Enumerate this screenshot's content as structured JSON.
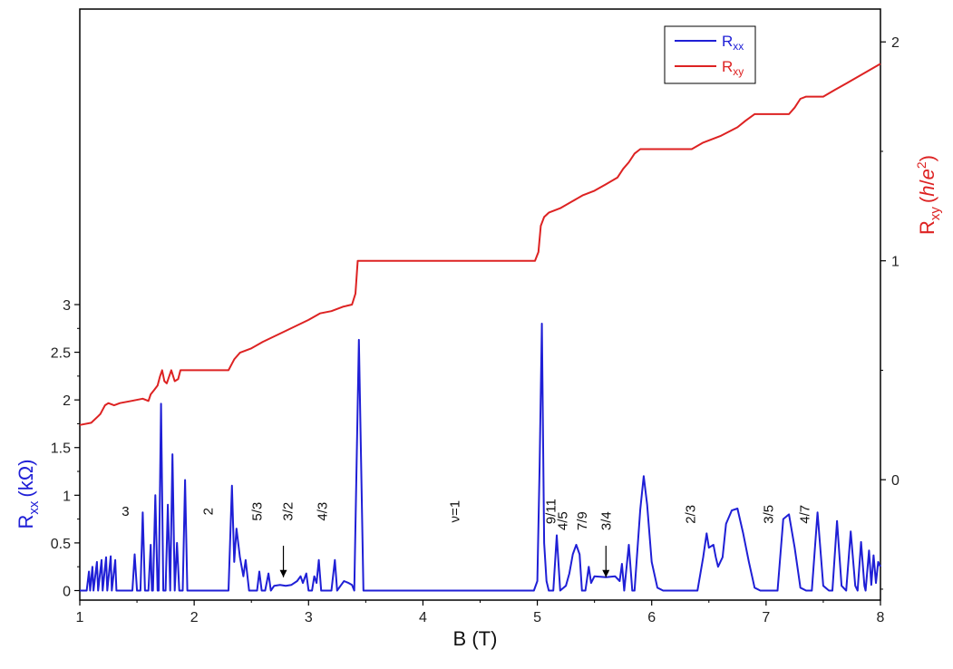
{
  "chart_data": {
    "type": "line",
    "xlabel": "B (T)",
    "ylabel_left": {
      "main": "R",
      "sub": "xx",
      "unit": "(kΩ)"
    },
    "ylabel_right": {
      "main": "R",
      "sub": "xy",
      "unit_open": "(",
      "unit_h": "h",
      "unit_slash": "/",
      "unit_e": "e",
      "unit_sup": "2",
      "unit_close": ")"
    },
    "xlim": [
      1,
      8
    ],
    "ylim_left": [
      -0.1,
      6.1
    ],
    "ylim_right": [
      -0.55,
      2.15
    ],
    "x_ticks": [
      "1",
      "2",
      "3",
      "4",
      "5",
      "6",
      "7",
      "8"
    ],
    "y_ticks_left": [
      "0",
      "0.5",
      "1",
      "1.5",
      "2",
      "2.5",
      "3"
    ],
    "y_ticks_right": [
      "0",
      "1",
      "2"
    ],
    "legend": {
      "position": "top-right",
      "entries": [
        {
          "main": "R",
          "sub": "xx",
          "color": "#1f1fd6"
        },
        {
          "main": "R",
          "sub": "xy",
          "color": "#dd2222"
        }
      ]
    },
    "colors": {
      "rxx": "#1f1fd6",
      "rxy": "#dd2222",
      "left_axis_label": "#1f1fd6",
      "right_axis_label": "#dd2222"
    },
    "annotations": [
      {
        "text": "3",
        "x": 1.4,
        "y": 0.83,
        "rotate": false
      },
      {
        "text": "2",
        "x": 2.12,
        "y": 0.83,
        "rotate": true
      },
      {
        "text": "5/3",
        "x": 2.55,
        "y": 0.83,
        "rotate": true
      },
      {
        "text": "3/2",
        "x": 2.82,
        "y": 0.83,
        "rotate": true
      },
      {
        "text": "4/3",
        "x": 3.12,
        "y": 0.83,
        "rotate": true
      },
      {
        "text": "ν=1",
        "x": 4.28,
        "y": 0.83,
        "rotate": true
      },
      {
        "text": "9/11",
        "x": 5.12,
        "y": 0.83,
        "rotate": true
      },
      {
        "text": "4/5",
        "x": 5.22,
        "y": 0.73,
        "rotate": true
      },
      {
        "text": "7/9",
        "x": 5.39,
        "y": 0.73,
        "rotate": true
      },
      {
        "text": "3/4",
        "x": 5.6,
        "y": 0.73,
        "rotate": true
      },
      {
        "text": "2/3",
        "x": 6.34,
        "y": 0.8,
        "rotate": true
      },
      {
        "text": "3/5",
        "x": 7.02,
        "y": 0.8,
        "rotate": true
      },
      {
        "text": "4/7",
        "x": 7.34,
        "y": 0.8,
        "rotate": true
      }
    ],
    "arrows": [
      {
        "x": 2.78,
        "y_from": 0.47,
        "y_to": 0.14
      },
      {
        "x": 5.6,
        "y_from": 0.47,
        "y_to": 0.14
      }
    ],
    "series": [
      {
        "name": "Rxx",
        "axis": "left",
        "points": [
          [
            1.0,
            0.0
          ],
          [
            1.06,
            0.0
          ],
          [
            1.08,
            0.2
          ],
          [
            1.09,
            0.0
          ],
          [
            1.11,
            0.25
          ],
          [
            1.12,
            0.0
          ],
          [
            1.15,
            0.3
          ],
          [
            1.16,
            0.0
          ],
          [
            1.19,
            0.32
          ],
          [
            1.2,
            0.0
          ],
          [
            1.23,
            0.35
          ],
          [
            1.24,
            0.0
          ],
          [
            1.27,
            0.36
          ],
          [
            1.28,
            0.0
          ],
          [
            1.31,
            0.32
          ],
          [
            1.32,
            0.0
          ],
          [
            1.46,
            0.0
          ],
          [
            1.48,
            0.38
          ],
          [
            1.5,
            0.0
          ],
          [
            1.53,
            0.0
          ],
          [
            1.55,
            0.82
          ],
          [
            1.57,
            0.0
          ],
          [
            1.6,
            0.0
          ],
          [
            1.62,
            0.48
          ],
          [
            1.63,
            0.0
          ],
          [
            1.64,
            0.0
          ],
          [
            1.66,
            1.0
          ],
          [
            1.68,
            0.0
          ],
          [
            1.69,
            0.0
          ],
          [
            1.71,
            1.96
          ],
          [
            1.73,
            0.0
          ],
          [
            1.75,
            0.0
          ],
          [
            1.77,
            0.9
          ],
          [
            1.79,
            0.0
          ],
          [
            1.79,
            0.0
          ],
          [
            1.81,
            1.43
          ],
          [
            1.83,
            0.0
          ],
          [
            1.83,
            0.0
          ],
          [
            1.85,
            0.5
          ],
          [
            1.87,
            0.0
          ],
          [
            1.9,
            0.0
          ],
          [
            1.92,
            1.16
          ],
          [
            1.94,
            0.0
          ],
          [
            2.3,
            0.0
          ],
          [
            2.33,
            1.1
          ],
          [
            2.35,
            0.3
          ],
          [
            2.37,
            0.65
          ],
          [
            2.4,
            0.35
          ],
          [
            2.43,
            0.15
          ],
          [
            2.45,
            0.32
          ],
          [
            2.48,
            0.0
          ],
          [
            2.55,
            0.0
          ],
          [
            2.57,
            0.2
          ],
          [
            2.59,
            0.0
          ],
          [
            2.62,
            0.0
          ],
          [
            2.65,
            0.18
          ],
          [
            2.67,
            0.0
          ],
          [
            2.7,
            0.05
          ],
          [
            2.75,
            0.06
          ],
          [
            2.8,
            0.05
          ],
          [
            2.85,
            0.06
          ],
          [
            2.9,
            0.1
          ],
          [
            2.93,
            0.15
          ],
          [
            2.95,
            0.08
          ],
          [
            2.98,
            0.18
          ],
          [
            3.0,
            0.0
          ],
          [
            3.03,
            0.0
          ],
          [
            3.05,
            0.15
          ],
          [
            3.07,
            0.08
          ],
          [
            3.09,
            0.32
          ],
          [
            3.11,
            0.0
          ],
          [
            3.2,
            0.0
          ],
          [
            3.23,
            0.32
          ],
          [
            3.25,
            0.0
          ],
          [
            3.28,
            0.05
          ],
          [
            3.31,
            0.1
          ],
          [
            3.35,
            0.08
          ],
          [
            3.38,
            0.06
          ],
          [
            3.4,
            0.0
          ],
          [
            3.44,
            2.63
          ],
          [
            3.48,
            0.0
          ],
          [
            4.97,
            0.0
          ],
          [
            5.0,
            0.1
          ],
          [
            5.02,
            1.3
          ],
          [
            5.04,
            2.8
          ],
          [
            5.06,
            0.5
          ],
          [
            5.08,
            0.1
          ],
          [
            5.1,
            0.0
          ],
          [
            5.14,
            0.0
          ],
          [
            5.17,
            0.58
          ],
          [
            5.2,
            0.0
          ],
          [
            5.22,
            0.02
          ],
          [
            5.25,
            0.05
          ],
          [
            5.28,
            0.18
          ],
          [
            5.31,
            0.38
          ],
          [
            5.34,
            0.48
          ],
          [
            5.37,
            0.38
          ],
          [
            5.39,
            0.0
          ],
          [
            5.42,
            0.0
          ],
          [
            5.45,
            0.25
          ],
          [
            5.47,
            0.08
          ],
          [
            5.5,
            0.15
          ],
          [
            5.6,
            0.14
          ],
          [
            5.68,
            0.15
          ],
          [
            5.72,
            0.1
          ],
          [
            5.74,
            0.28
          ],
          [
            5.76,
            0.0
          ],
          [
            5.8,
            0.48
          ],
          [
            5.83,
            0.0
          ],
          [
            5.85,
            0.0
          ],
          [
            5.9,
            0.85
          ],
          [
            5.93,
            1.2
          ],
          [
            5.96,
            0.9
          ],
          [
            6.0,
            0.3
          ],
          [
            6.05,
            0.03
          ],
          [
            6.1,
            0.0
          ],
          [
            6.4,
            0.0
          ],
          [
            6.45,
            0.35
          ],
          [
            6.48,
            0.6
          ],
          [
            6.5,
            0.45
          ],
          [
            6.54,
            0.48
          ],
          [
            6.56,
            0.35
          ],
          [
            6.58,
            0.25
          ],
          [
            6.62,
            0.35
          ],
          [
            6.65,
            0.7
          ],
          [
            6.7,
            0.84
          ],
          [
            6.75,
            0.86
          ],
          [
            6.8,
            0.6
          ],
          [
            6.85,
            0.3
          ],
          [
            6.9,
            0.03
          ],
          [
            6.95,
            0.0
          ],
          [
            7.1,
            0.0
          ],
          [
            7.15,
            0.75
          ],
          [
            7.2,
            0.8
          ],
          [
            7.25,
            0.45
          ],
          [
            7.3,
            0.03
          ],
          [
            7.35,
            0.0
          ],
          [
            7.4,
            0.0
          ],
          [
            7.45,
            0.82
          ],
          [
            7.5,
            0.05
          ],
          [
            7.55,
            0.0
          ],
          [
            7.58,
            0.0
          ],
          [
            7.62,
            0.73
          ],
          [
            7.66,
            0.05
          ],
          [
            7.7,
            0.0
          ],
          [
            7.74,
            0.62
          ],
          [
            7.78,
            0.05
          ],
          [
            7.8,
            0.0
          ],
          [
            7.83,
            0.51
          ],
          [
            7.86,
            0.05
          ],
          [
            7.87,
            0.0
          ],
          [
            7.9,
            0.42
          ],
          [
            7.92,
            0.06
          ],
          [
            7.94,
            0.37
          ],
          [
            7.96,
            0.08
          ],
          [
            7.98,
            0.3
          ],
          [
            8.0,
            0.25
          ]
        ]
      },
      {
        "name": "Rxy",
        "axis": "right",
        "points": [
          [
            1.0,
            0.25
          ],
          [
            1.1,
            0.26
          ],
          [
            1.16,
            0.29
          ],
          [
            1.18,
            0.3
          ],
          [
            1.2,
            0.32
          ],
          [
            1.22,
            0.34
          ],
          [
            1.25,
            0.35
          ],
          [
            1.3,
            0.34
          ],
          [
            1.35,
            0.35
          ],
          [
            1.45,
            0.36
          ],
          [
            1.55,
            0.37
          ],
          [
            1.6,
            0.36
          ],
          [
            1.62,
            0.39
          ],
          [
            1.65,
            0.41
          ],
          [
            1.68,
            0.43
          ],
          [
            1.7,
            0.47
          ],
          [
            1.72,
            0.5
          ],
          [
            1.74,
            0.45
          ],
          [
            1.76,
            0.44
          ],
          [
            1.78,
            0.47
          ],
          [
            1.8,
            0.5
          ],
          [
            1.83,
            0.45
          ],
          [
            1.86,
            0.46
          ],
          [
            1.88,
            0.5
          ],
          [
            1.95,
            0.5
          ],
          [
            2.1,
            0.5
          ],
          [
            2.3,
            0.5
          ],
          [
            2.33,
            0.53
          ],
          [
            2.35,
            0.55
          ],
          [
            2.4,
            0.58
          ],
          [
            2.5,
            0.6
          ],
          [
            2.6,
            0.63
          ],
          [
            2.8,
            0.68
          ],
          [
            3.0,
            0.73
          ],
          [
            3.1,
            0.76
          ],
          [
            3.2,
            0.77
          ],
          [
            3.3,
            0.79
          ],
          [
            3.38,
            0.8
          ],
          [
            3.41,
            0.85
          ],
          [
            3.43,
            1.0
          ],
          [
            4.0,
            1.0
          ],
          [
            4.5,
            1.0
          ],
          [
            4.98,
            1.0
          ],
          [
            5.01,
            1.04
          ],
          [
            5.03,
            1.16
          ],
          [
            5.06,
            1.2
          ],
          [
            5.1,
            1.22
          ],
          [
            5.2,
            1.24
          ],
          [
            5.3,
            1.27
          ],
          [
            5.4,
            1.3
          ],
          [
            5.5,
            1.32
          ],
          [
            5.6,
            1.35
          ],
          [
            5.7,
            1.38
          ],
          [
            5.75,
            1.42
          ],
          [
            5.8,
            1.45
          ],
          [
            5.85,
            1.49
          ],
          [
            5.9,
            1.51
          ],
          [
            6.0,
            1.51
          ],
          [
            6.2,
            1.51
          ],
          [
            6.35,
            1.51
          ],
          [
            6.45,
            1.54
          ],
          [
            6.6,
            1.57
          ],
          [
            6.75,
            1.61
          ],
          [
            6.82,
            1.64
          ],
          [
            6.9,
            1.67
          ],
          [
            7.0,
            1.67
          ],
          [
            7.2,
            1.67
          ],
          [
            7.25,
            1.7
          ],
          [
            7.3,
            1.74
          ],
          [
            7.35,
            1.75
          ],
          [
            7.5,
            1.75
          ],
          [
            7.6,
            1.78
          ],
          [
            7.7,
            1.81
          ],
          [
            7.8,
            1.84
          ],
          [
            7.9,
            1.87
          ],
          [
            8.0,
            1.9
          ]
        ]
      }
    ]
  }
}
